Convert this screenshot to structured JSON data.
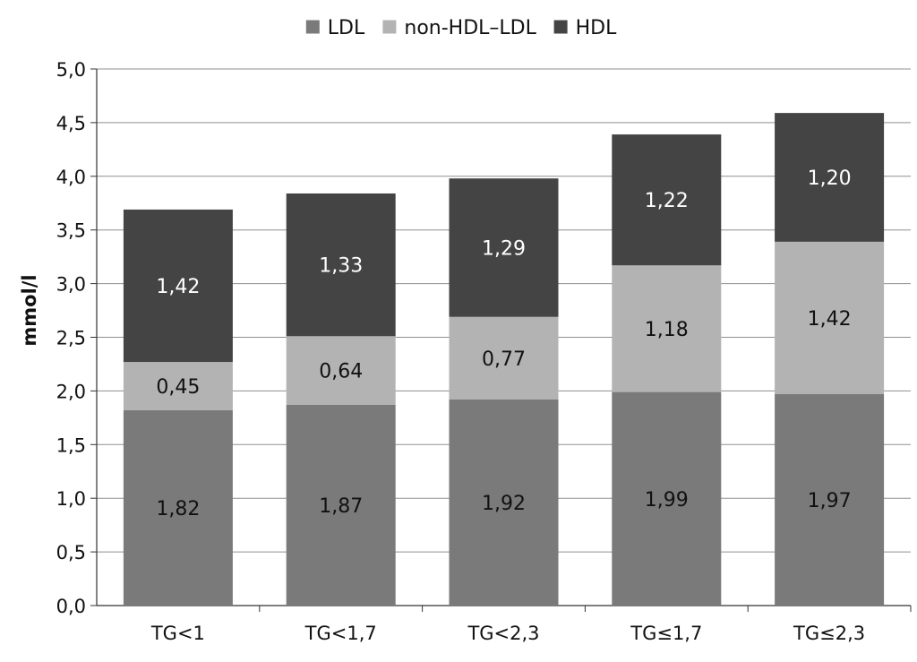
{
  "chart_data": {
    "type": "bar",
    "stacked": true,
    "title": "",
    "xlabel": "",
    "ylabel": "mmol/l",
    "ylim": [
      0,
      5
    ],
    "ytick_step": 0.5,
    "ytick_labels": [
      "0,0",
      "0,5",
      "1,0",
      "1,5",
      "2,0",
      "2,5",
      "3,0",
      "3,5",
      "4,0",
      "4,5",
      "5,0"
    ],
    "grid": true,
    "legend_position": "top-center",
    "categories": [
      "TG<1",
      "TG<1,7",
      "TG<2,3",
      "TG≤1,7",
      "TG≤2,3"
    ],
    "series": [
      {
        "name": "LDL",
        "color": "#7a7a7a",
        "label_color": "#111111",
        "values": [
          1.82,
          1.87,
          1.92,
          1.99,
          1.97
        ],
        "labels": [
          "1,82",
          "1,87",
          "1,92",
          "1,99",
          "1,97"
        ]
      },
      {
        "name": "non-HDL–LDL",
        "color": "#b3b3b3",
        "label_color": "#111111",
        "values": [
          0.45,
          0.64,
          0.77,
          1.18,
          1.42
        ],
        "labels": [
          "0,45",
          "0,64",
          "0,77",
          "1,18",
          "1,42"
        ]
      },
      {
        "name": "HDL",
        "color": "#444444",
        "label_color": "#ffffff",
        "values": [
          1.42,
          1.33,
          1.29,
          1.22,
          1.2
        ],
        "labels": [
          "1,42",
          "1,33",
          "1,29",
          "1,22",
          "1,20"
        ]
      }
    ]
  }
}
